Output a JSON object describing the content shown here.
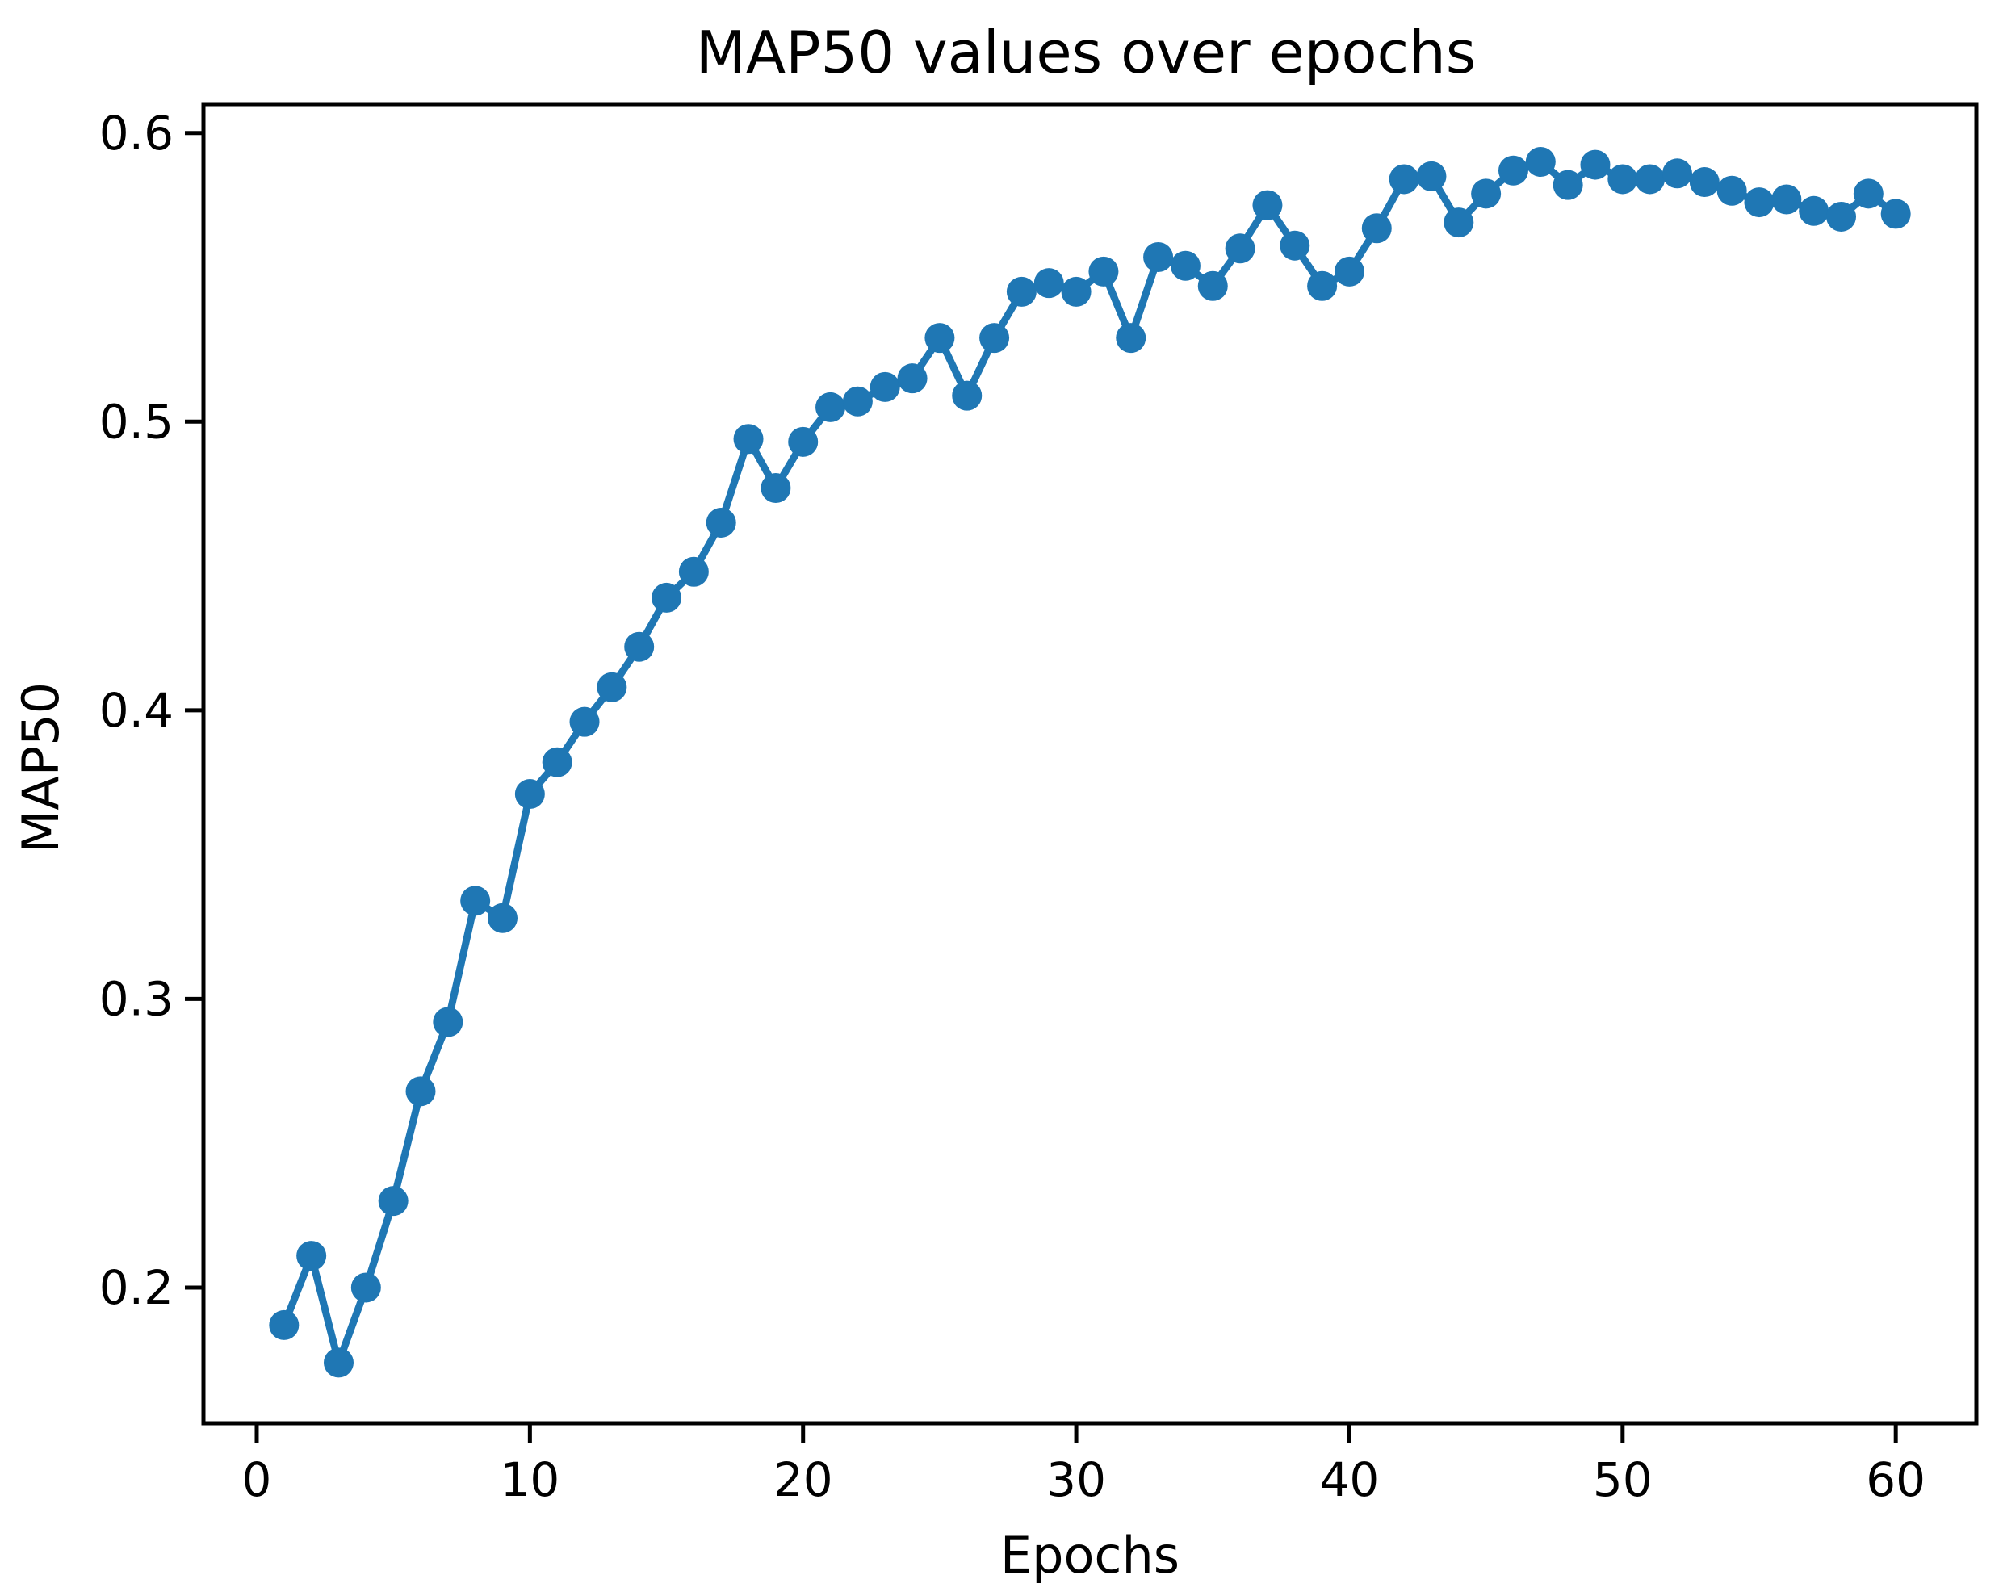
{
  "figure": {
    "title": "MAP50 values over epochs",
    "background": "#ffffff"
  },
  "chart_data": {
    "type": "line",
    "title": "MAP50 values over epochs",
    "xlabel": "Epochs",
    "ylabel": "MAP50",
    "line_color": "#1f77b4",
    "marker": "circle",
    "grid": false,
    "legend_position": "none",
    "xticks": [
      0,
      10,
      20,
      30,
      40,
      50,
      60
    ],
    "yticks": [
      0.2,
      0.3,
      0.4,
      0.5,
      0.6
    ],
    "xlim": [
      -1.95,
      62.95
    ],
    "ylim": [
      0.153,
      0.61
    ],
    "x": [
      1,
      2,
      3,
      4,
      5,
      6,
      7,
      8,
      9,
      10,
      11,
      12,
      13,
      14,
      15,
      16,
      17,
      18,
      19,
      20,
      21,
      22,
      23,
      24,
      25,
      26,
      27,
      28,
      29,
      30,
      31,
      32,
      33,
      34,
      35,
      36,
      37,
      38,
      39,
      40,
      41,
      42,
      43,
      44,
      45,
      46,
      47,
      48,
      49,
      50,
      51,
      52,
      53,
      54,
      55,
      56,
      57,
      58,
      59,
      60
    ],
    "series": [
      {
        "name": "MAP50",
        "values": [
          0.187,
          0.211,
          0.174,
          0.2,
          0.23,
          0.268,
          0.292,
          0.334,
          0.328,
          0.371,
          0.382,
          0.396,
          0.408,
          0.422,
          0.439,
          0.448,
          0.465,
          0.494,
          0.477,
          0.493,
          0.505,
          0.507,
          0.512,
          0.515,
          0.529,
          0.509,
          0.529,
          0.545,
          0.548,
          0.545,
          0.552,
          0.529,
          0.557,
          0.554,
          0.547,
          0.56,
          0.575,
          0.561,
          0.547,
          0.552,
          0.567,
          0.584,
          0.585,
          0.569,
          0.579,
          0.587,
          0.59,
          0.582,
          0.589,
          0.584,
          0.584,
          0.586,
          0.583,
          0.58,
          0.576,
          0.577,
          0.573,
          0.571,
          0.579,
          0.572
        ]
      }
    ]
  }
}
